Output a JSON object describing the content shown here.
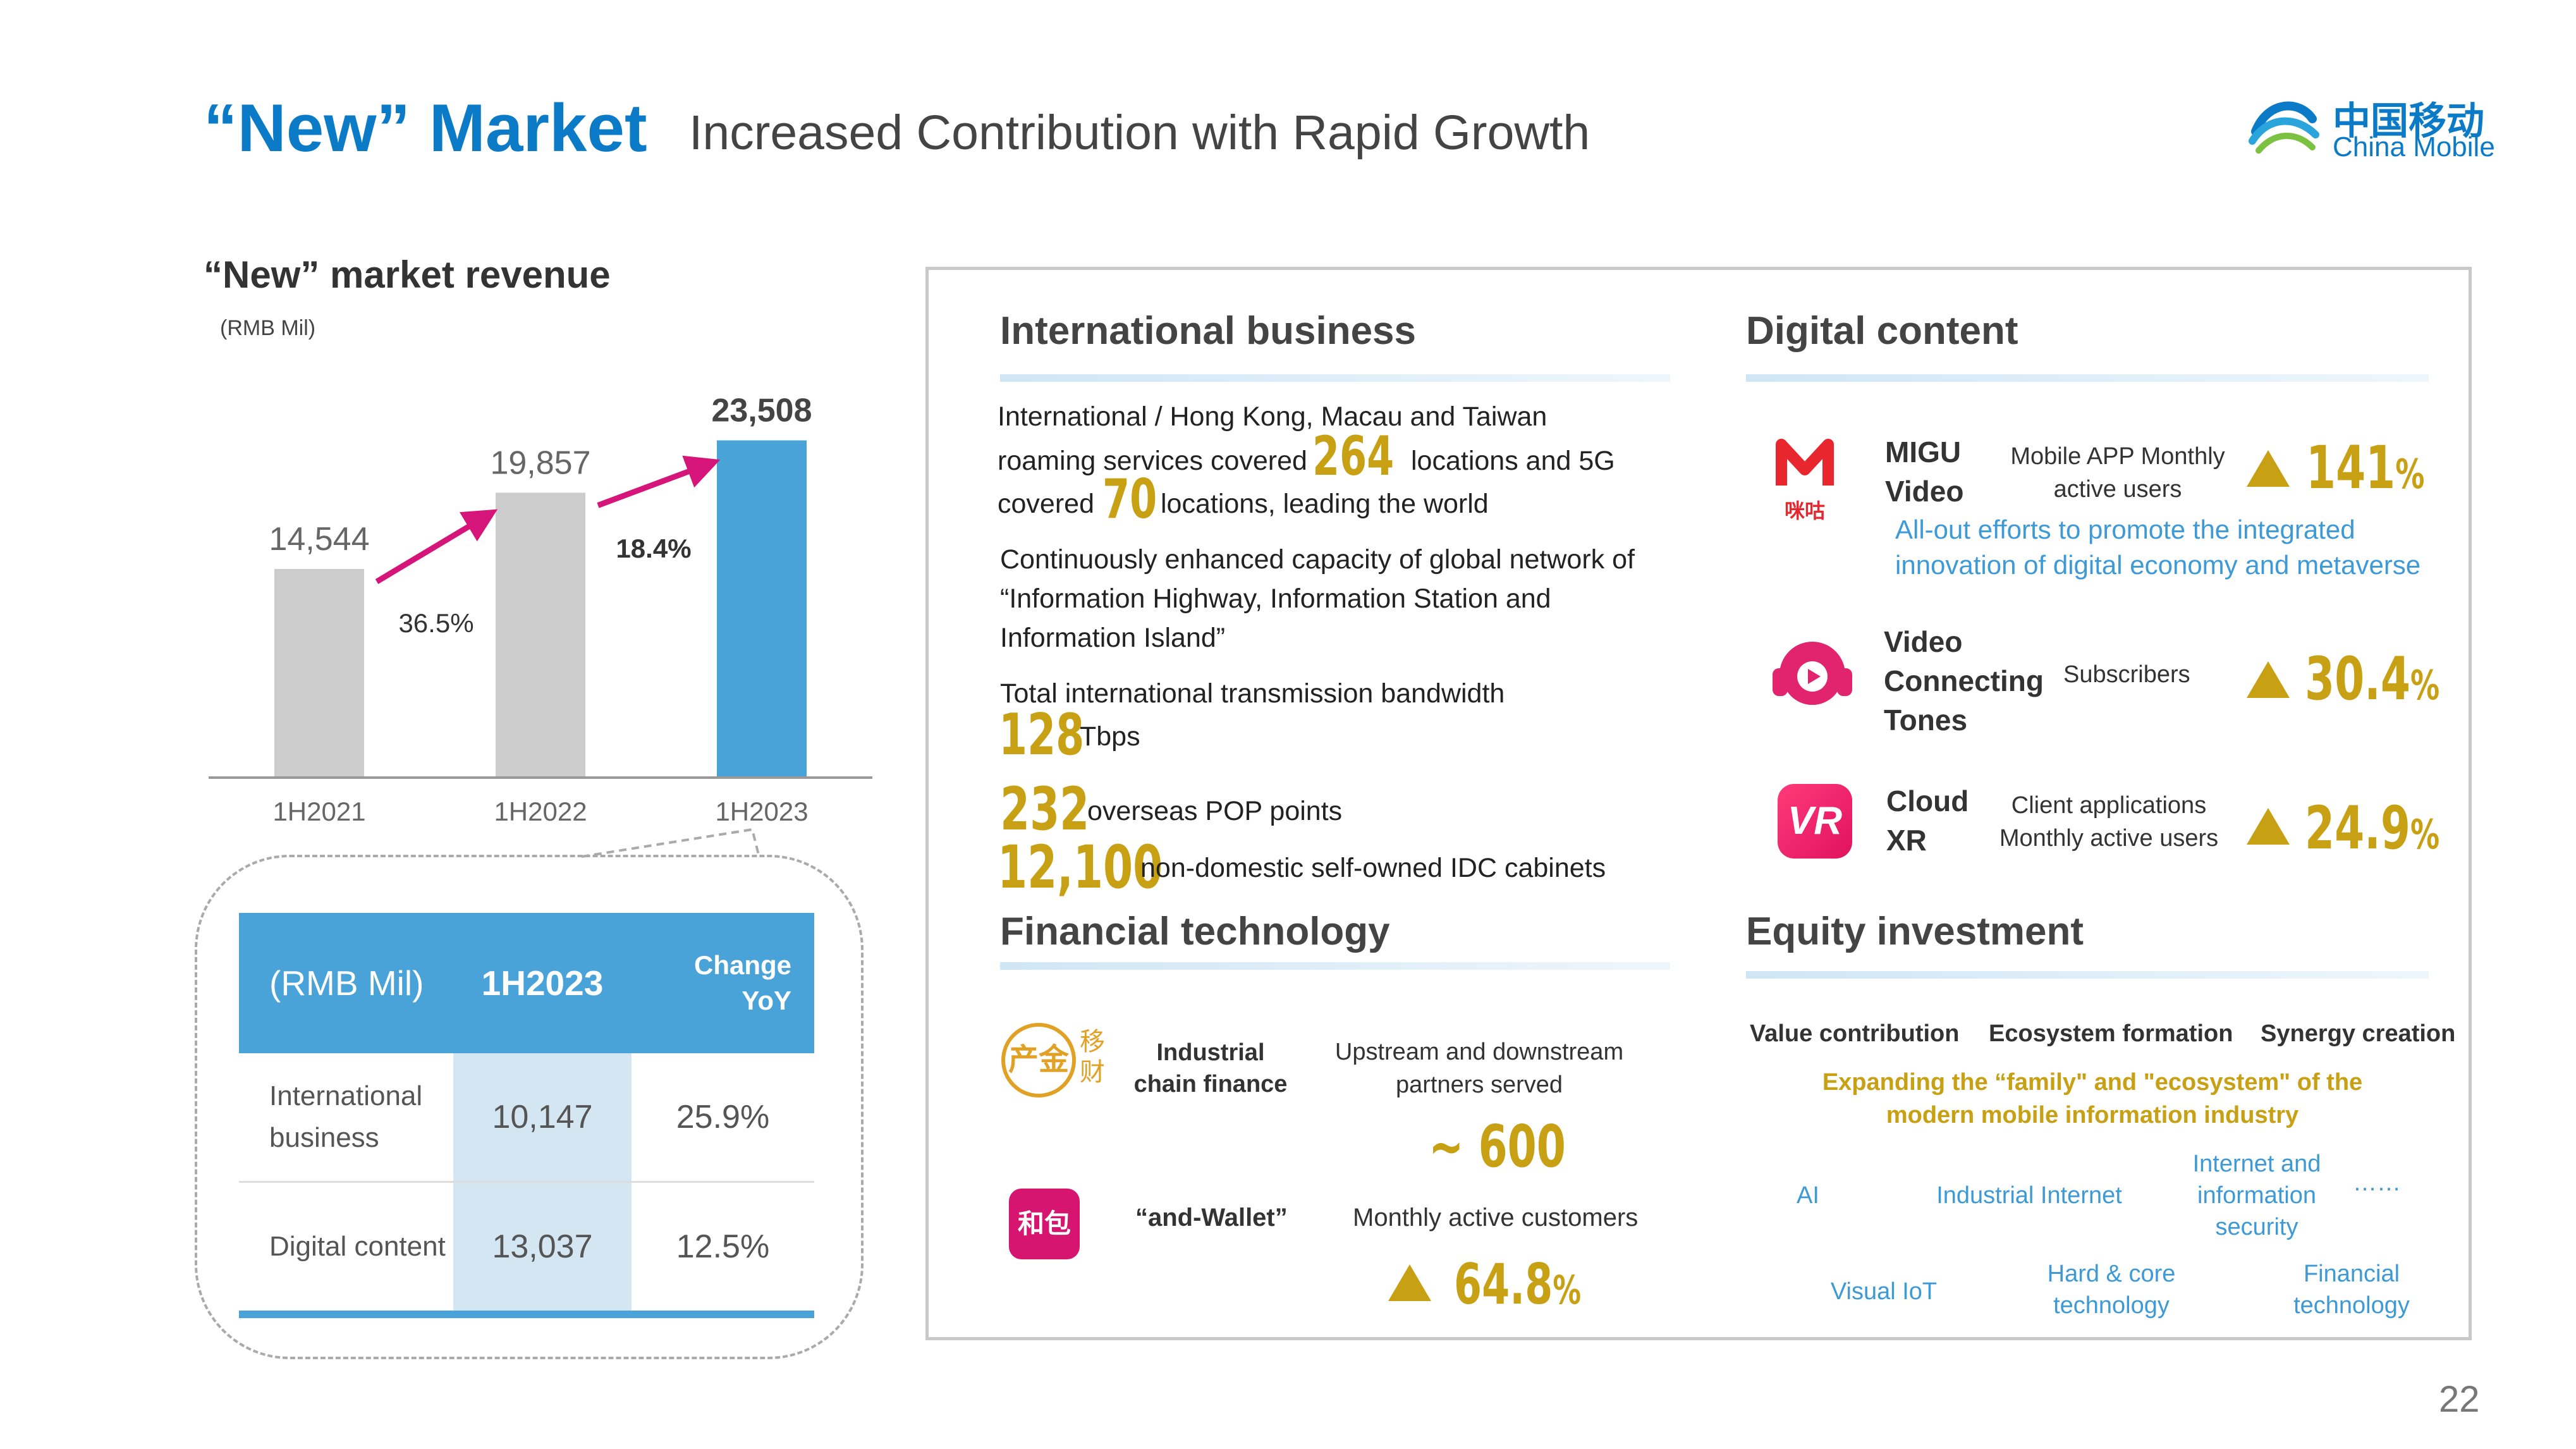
{
  "header": {
    "title": "“New” Market",
    "subtitle": "Increased Contribution with Rapid Growth",
    "logo_cn": "中国移动",
    "logo_en": "China Mobile"
  },
  "page_number": "22",
  "chart_data": {
    "type": "bar",
    "title": "“New” market revenue",
    "unit": "(RMB Mil)",
    "categories": [
      "1H2021",
      "1H2022",
      "1H2023"
    ],
    "values": [
      14544,
      19857,
      23508
    ],
    "value_labels": [
      "14,544",
      "19,857",
      "23,508"
    ],
    "growth_labels": [
      "36.5%",
      "18.4%"
    ],
    "colors": [
      "#cccccc",
      "#cccccc",
      "#4aa3d8"
    ],
    "arrow_color": "#d6157a",
    "ylim": [
      0,
      26000
    ]
  },
  "revenue_table": {
    "headers": [
      "(RMB Mil)",
      "1H2023",
      "Change\nYoY"
    ],
    "rows": [
      {
        "name": "International business",
        "value": "10,147",
        "change": "25.9%"
      },
      {
        "name": "Digital content",
        "value": "13,037",
        "change": "12.5%"
      }
    ]
  },
  "international": {
    "title": "International business",
    "line1": "International / Hong Kong, Macau and Taiwan",
    "line2a": "roaming services covered",
    "num264": "264",
    "line2b": "locations and 5G",
    "line3a": "covered",
    "num70": "70",
    "line3b": "locations, leading the world",
    "para2_1": "Continuously enhanced capacity of global network of",
    "para2_2": "“Information Highway, Information Station and",
    "para2_3": "Information Island”",
    "para3": "Total international transmission bandwidth",
    "num128": "128",
    "tbps": "Tbps",
    "num232": "232",
    "pop": "overseas POP points",
    "num12100": "12,100",
    "idc": "non-domestic self-owned IDC cabinets"
  },
  "fintech": {
    "title": "Financial technology",
    "item1_label": "Industrial chain finance",
    "item1_desc": "Upstream and downstream partners served",
    "item1_value": "~ 600",
    "item2_label": "“and-Wallet”",
    "item2_desc": "Monthly active customers",
    "item2_value": "64.8",
    "pct": "%",
    "icon1_text1": "产金",
    "icon1_text2": "移财",
    "icon2_text": "和包"
  },
  "digital": {
    "title": "Digital content",
    "items": [
      {
        "name": "MIGU Video",
        "metric": "Mobile APP Monthly active users",
        "value": "141"
      },
      {
        "name": "Video Connecting Tones",
        "metric": "Subscribers",
        "value": "30.4"
      },
      {
        "name": "Cloud XR",
        "metric": "Client applications Monthly active users",
        "value": "24.9"
      }
    ],
    "note": "All-out efforts to promote the integrated innovation of digital economy and metaverse",
    "migu_logo_text": "咪咕"
  },
  "equity": {
    "title": "Equity investment",
    "pillars": [
      "Value contribution",
      "Ecosystem formation",
      "Synergy creation"
    ],
    "tagline": "Expanding the “family\" and \"ecosystem\" of the modern mobile information industry",
    "areas_row1": [
      "AI",
      "Industrial Internet",
      "Internet and information security",
      "……"
    ],
    "areas_row2": [
      "Visual IoT",
      "Hard & core technology",
      "Financial technology"
    ]
  }
}
